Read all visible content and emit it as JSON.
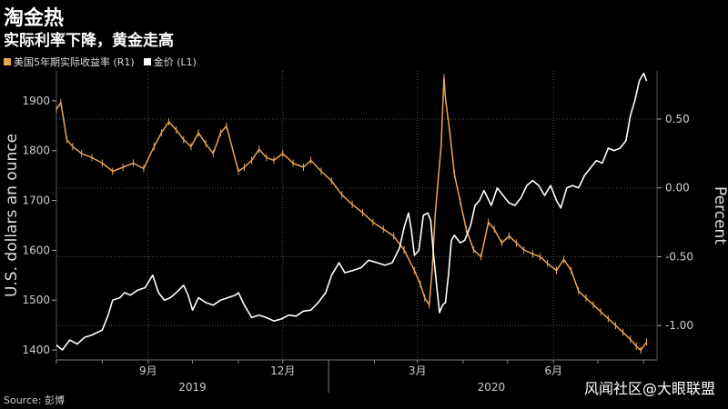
{
  "header": {
    "title": "淘金热",
    "subtitle": "实际利率下降，黄金走高"
  },
  "legend": [
    {
      "label": "美国5年期实际收益率 (R1)",
      "color": "#e8a455"
    },
    {
      "label": "金价 (L1)",
      "color": "#ffffff"
    }
  ],
  "footer": {
    "source": "Source: 彭博",
    "watermark": "风闻社区@大眼联盟"
  },
  "chart_data": {
    "type": "line",
    "title": "淘金热",
    "subtitle": "实际利率下降，黄金走高",
    "ylabel_left": "U.S. dollars an ounce",
    "ylabel_right": "Percent",
    "ylim_left": [
      1380,
      1960
    ],
    "ylim_right": [
      -1.25,
      0.85
    ],
    "yticks_left": [
      1400,
      1500,
      1600,
      1700,
      1800,
      1900
    ],
    "yticks_right": [
      0.5,
      0.0,
      -0.5,
      -1.0
    ],
    "yticks_right_labels": [
      "0.50",
      "0.00",
      "-0.50",
      "-1.00"
    ],
    "x_month_labels": [
      {
        "label": "9月",
        "date": "2019-09-01"
      },
      {
        "label": "12月",
        "date": "2019-12-01"
      },
      {
        "label": "3月",
        "date": "2020-03-01"
      },
      {
        "label": "6月",
        "date": "2020-06-01"
      }
    ],
    "x_year_labels": [
      {
        "label": "2019",
        "date": "2019-10-01"
      },
      {
        "label": "2020",
        "date": "2020-04-20"
      }
    ],
    "xlim": [
      "2019-07-01",
      "2020-08-10"
    ],
    "grid": true,
    "series": [
      {
        "name": "金价 (L1)",
        "axis": "left",
        "color": "#ffffff",
        "points": [
          [
            "2019-07-01",
            1410
          ],
          [
            "2019-07-05",
            1400
          ],
          [
            "2019-07-10",
            1420
          ],
          [
            "2019-07-15",
            1412
          ],
          [
            "2019-07-20",
            1425
          ],
          [
            "2019-07-25",
            1430
          ],
          [
            "2019-08-01",
            1440
          ],
          [
            "2019-08-05",
            1470
          ],
          [
            "2019-08-08",
            1500
          ],
          [
            "2019-08-13",
            1505
          ],
          [
            "2019-08-16",
            1515
          ],
          [
            "2019-08-20",
            1510
          ],
          [
            "2019-08-25",
            1520
          ],
          [
            "2019-08-30",
            1525
          ],
          [
            "2019-09-04",
            1550
          ],
          [
            "2019-09-08",
            1515
          ],
          [
            "2019-09-12",
            1500
          ],
          [
            "2019-09-16",
            1505
          ],
          [
            "2019-09-20",
            1515
          ],
          [
            "2019-09-25",
            1530
          ],
          [
            "2019-09-28",
            1510
          ],
          [
            "2019-10-01",
            1480
          ],
          [
            "2019-10-05",
            1505
          ],
          [
            "2019-10-10",
            1495
          ],
          [
            "2019-10-15",
            1490
          ],
          [
            "2019-10-20",
            1500
          ],
          [
            "2019-10-25",
            1505
          ],
          [
            "2019-10-30",
            1510
          ],
          [
            "2019-11-01",
            1515
          ],
          [
            "2019-11-05",
            1490
          ],
          [
            "2019-11-10",
            1465
          ],
          [
            "2019-11-15",
            1470
          ],
          [
            "2019-11-20",
            1465
          ],
          [
            "2019-11-25",
            1458
          ],
          [
            "2019-11-30",
            1462
          ],
          [
            "2019-12-05",
            1470
          ],
          [
            "2019-12-10",
            1468
          ],
          [
            "2019-12-15",
            1478
          ],
          [
            "2019-12-20",
            1480
          ],
          [
            "2019-12-25",
            1495
          ],
          [
            "2019-12-30",
            1515
          ],
          [
            "2020-01-03",
            1550
          ],
          [
            "2020-01-08",
            1575
          ],
          [
            "2020-01-12",
            1555
          ],
          [
            "2020-01-18",
            1560
          ],
          [
            "2020-01-23",
            1565
          ],
          [
            "2020-01-28",
            1580
          ],
          [
            "2020-02-03",
            1575
          ],
          [
            "2020-02-08",
            1570
          ],
          [
            "2020-02-13",
            1575
          ],
          [
            "2020-02-18",
            1605
          ],
          [
            "2020-02-21",
            1645
          ],
          [
            "2020-02-24",
            1675
          ],
          [
            "2020-02-26",
            1640
          ],
          [
            "2020-02-28",
            1590
          ],
          [
            "2020-03-02",
            1600
          ],
          [
            "2020-03-05",
            1670
          ],
          [
            "2020-03-08",
            1675
          ],
          [
            "2020-03-10",
            1660
          ],
          [
            "2020-03-12",
            1590
          ],
          [
            "2020-03-14",
            1530
          ],
          [
            "2020-03-16",
            1475
          ],
          [
            "2020-03-18",
            1490
          ],
          [
            "2020-03-20",
            1495
          ],
          [
            "2020-03-22",
            1550
          ],
          [
            "2020-03-24",
            1620
          ],
          [
            "2020-03-26",
            1630
          ],
          [
            "2020-03-30",
            1615
          ],
          [
            "2020-04-02",
            1620
          ],
          [
            "2020-04-06",
            1650
          ],
          [
            "2020-04-09",
            1690
          ],
          [
            "2020-04-12",
            1700
          ],
          [
            "2020-04-15",
            1720
          ],
          [
            "2020-04-20",
            1690
          ],
          [
            "2020-04-24",
            1725
          ],
          [
            "2020-04-28",
            1710
          ],
          [
            "2020-05-02",
            1695
          ],
          [
            "2020-05-06",
            1690
          ],
          [
            "2020-05-10",
            1705
          ],
          [
            "2020-05-14",
            1730
          ],
          [
            "2020-05-18",
            1740
          ],
          [
            "2020-05-22",
            1730
          ],
          [
            "2020-05-26",
            1710
          ],
          [
            "2020-05-30",
            1730
          ],
          [
            "2020-06-03",
            1700
          ],
          [
            "2020-06-06",
            1685
          ],
          [
            "2020-06-10",
            1725
          ],
          [
            "2020-06-14",
            1730
          ],
          [
            "2020-06-18",
            1725
          ],
          [
            "2020-06-22",
            1750
          ],
          [
            "2020-06-26",
            1765
          ],
          [
            "2020-06-30",
            1780
          ],
          [
            "2020-07-04",
            1775
          ],
          [
            "2020-07-08",
            1805
          ],
          [
            "2020-07-12",
            1800
          ],
          [
            "2020-07-16",
            1805
          ],
          [
            "2020-07-20",
            1820
          ],
          [
            "2020-07-23",
            1870
          ],
          [
            "2020-07-26",
            1900
          ],
          [
            "2020-07-29",
            1940
          ],
          [
            "2020-08-01",
            1955
          ],
          [
            "2020-08-03",
            1940
          ]
        ]
      },
      {
        "name": "美国5年期实际收益率 (R1)",
        "axis": "right",
        "color": "#e8a455",
        "points": [
          [
            "2019-07-01",
            0.57
          ],
          [
            "2019-07-04",
            0.62
          ],
          [
            "2019-07-08",
            0.35
          ],
          [
            "2019-07-12",
            0.3
          ],
          [
            "2019-07-18",
            0.25
          ],
          [
            "2019-07-25",
            0.22
          ],
          [
            "2019-08-01",
            0.18
          ],
          [
            "2019-08-08",
            0.12
          ],
          [
            "2019-08-15",
            0.15
          ],
          [
            "2019-08-22",
            0.18
          ],
          [
            "2019-08-29",
            0.14
          ],
          [
            "2019-09-05",
            0.3
          ],
          [
            "2019-09-10",
            0.4
          ],
          [
            "2019-09-15",
            0.48
          ],
          [
            "2019-09-20",
            0.42
          ],
          [
            "2019-09-25",
            0.35
          ],
          [
            "2019-09-30",
            0.3
          ],
          [
            "2019-10-05",
            0.4
          ],
          [
            "2019-10-10",
            0.32
          ],
          [
            "2019-10-15",
            0.25
          ],
          [
            "2019-10-20",
            0.4
          ],
          [
            "2019-10-24",
            0.45
          ],
          [
            "2019-11-01",
            0.12
          ],
          [
            "2019-11-05",
            0.15
          ],
          [
            "2019-11-10",
            0.2
          ],
          [
            "2019-11-15",
            0.28
          ],
          [
            "2019-11-20",
            0.22
          ],
          [
            "2019-11-25",
            0.2
          ],
          [
            "2019-12-01",
            0.25
          ],
          [
            "2019-12-08",
            0.18
          ],
          [
            "2019-12-15",
            0.15
          ],
          [
            "2019-12-20",
            0.2
          ],
          [
            "2019-12-27",
            0.12
          ],
          [
            "2020-01-03",
            0.05
          ],
          [
            "2020-01-10",
            -0.05
          ],
          [
            "2020-01-17",
            -0.12
          ],
          [
            "2020-01-24",
            -0.18
          ],
          [
            "2020-01-31",
            -0.25
          ],
          [
            "2020-02-07",
            -0.3
          ],
          [
            "2020-02-14",
            -0.35
          ],
          [
            "2020-02-21",
            -0.45
          ],
          [
            "2020-02-28",
            -0.6
          ],
          [
            "2020-03-03",
            -0.7
          ],
          [
            "2020-03-06",
            -0.8
          ],
          [
            "2020-03-09",
            -0.85
          ],
          [
            "2020-03-11",
            -0.6
          ],
          [
            "2020-03-13",
            -0.2
          ],
          [
            "2020-03-15",
            0.05
          ],
          [
            "2020-03-17",
            0.3
          ],
          [
            "2020-03-19",
            0.8
          ],
          [
            "2020-03-20",
            0.65
          ],
          [
            "2020-03-23",
            0.4
          ],
          [
            "2020-03-26",
            0.1
          ],
          [
            "2020-03-30",
            -0.1
          ],
          [
            "2020-04-03",
            -0.3
          ],
          [
            "2020-04-08",
            -0.45
          ],
          [
            "2020-04-13",
            -0.5
          ],
          [
            "2020-04-18",
            -0.25
          ],
          [
            "2020-04-22",
            -0.3
          ],
          [
            "2020-04-27",
            -0.4
          ],
          [
            "2020-05-02",
            -0.35
          ],
          [
            "2020-05-07",
            -0.4
          ],
          [
            "2020-05-12",
            -0.45
          ],
          [
            "2020-05-18",
            -0.48
          ],
          [
            "2020-05-23",
            -0.5
          ],
          [
            "2020-05-28",
            -0.55
          ],
          [
            "2020-06-03",
            -0.6
          ],
          [
            "2020-06-08",
            -0.52
          ],
          [
            "2020-06-13",
            -0.6
          ],
          [
            "2020-06-18",
            -0.75
          ],
          [
            "2020-06-23",
            -0.8
          ],
          [
            "2020-06-28",
            -0.85
          ],
          [
            "2020-07-03",
            -0.9
          ],
          [
            "2020-07-08",
            -0.95
          ],
          [
            "2020-07-13",
            -1.0
          ],
          [
            "2020-07-18",
            -1.05
          ],
          [
            "2020-07-23",
            -1.1
          ],
          [
            "2020-07-27",
            -1.15
          ],
          [
            "2020-07-30",
            -1.18
          ],
          [
            "2020-08-03",
            -1.12
          ]
        ]
      }
    ]
  }
}
